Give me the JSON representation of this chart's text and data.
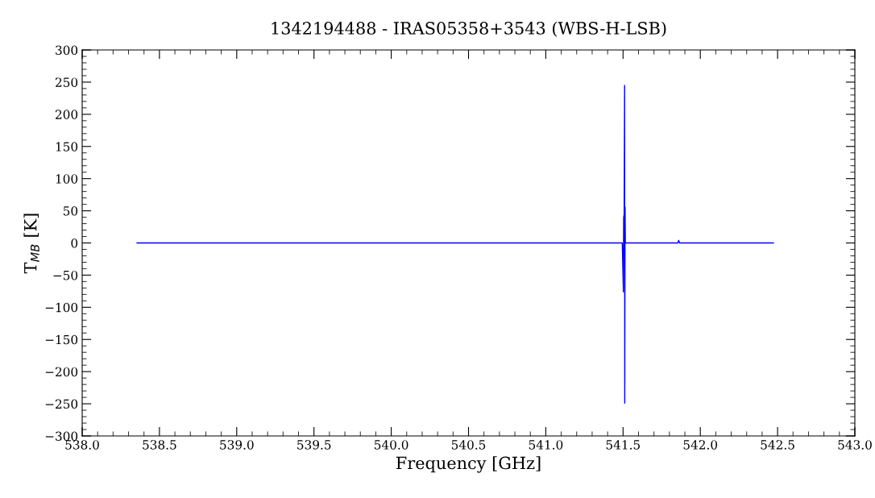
{
  "chart_data": {
    "type": "line",
    "title": "1342194488 - IRAS05358+3543 (WBS-H-LSB)",
    "xlabel": "Frequency [GHz]",
    "ylabel": "T$_{MB}$ [K]",
    "x": [
      538.355,
      541.495,
      541.502,
      541.504,
      541.507,
      541.51,
      541.511,
      541.513,
      541.515,
      541.855,
      541.86,
      541.866,
      542.473
    ],
    "series": [
      {
        "color": "#0000ff",
        "values": [
          0,
          0,
          -76,
          40,
          44,
          245,
          -249,
          56,
          0,
          0,
          4,
          0,
          0
        ]
      }
    ],
    "xlim": [
      538.0,
      543.0
    ],
    "xticks": [
      {
        "value": 538.0,
        "label": "538.0"
      },
      538.5,
      {
        "value": 539.0,
        "label": "539.0"
      },
      539.5,
      {
        "value": 540.0,
        "label": "540.0"
      },
      540.5,
      {
        "value": 541.0,
        "label": "541.0"
      },
      541.5,
      {
        "value": 542.0,
        "label": "542.0"
      },
      542.5,
      {
        "value": 543.0,
        "label": "543.0"
      }
    ],
    "ylim": [
      -300,
      300
    ],
    "yticks": [
      {
        "value": -300,
        "label": "−300"
      },
      {
        "value": -250,
        "label": "−250"
      },
      {
        "value": -200,
        "label": "−200"
      },
      {
        "value": -150,
        "label": "−150"
      },
      {
        "value": -100,
        "label": "−100"
      },
      {
        "value": -50,
        "label": "−50"
      },
      0,
      50,
      100,
      150,
      200,
      250,
      300
    ],
    "grid": false,
    "legend": false,
    "marker": "none",
    "line_style": "solid"
  }
}
